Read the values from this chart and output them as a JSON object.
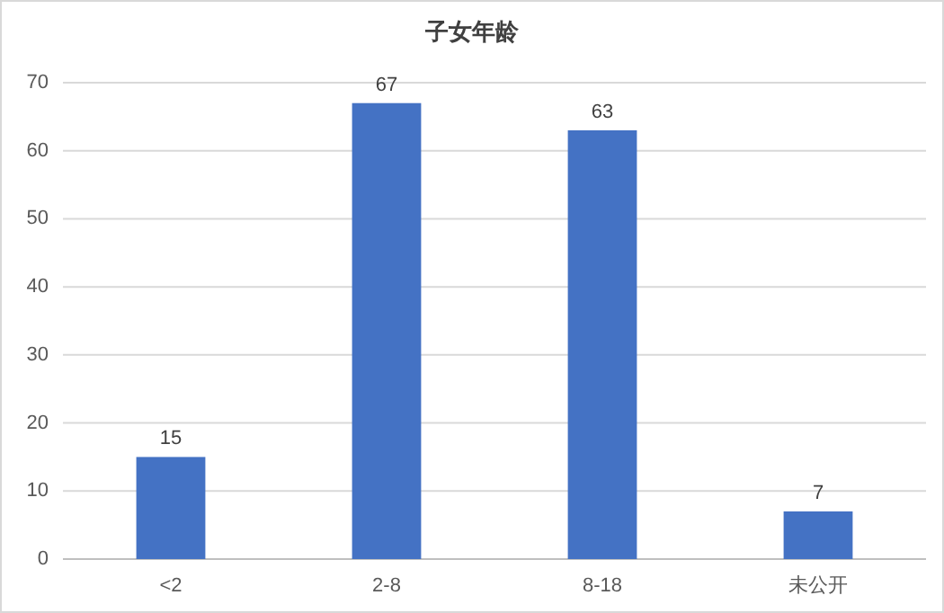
{
  "chart_data": {
    "type": "bar",
    "title": "子女年龄",
    "categories": [
      "<2",
      "2-8",
      "8-18",
      "未公开"
    ],
    "values": [
      15,
      67,
      63,
      7
    ],
    "color": "#4472c4",
    "ylim": [
      0,
      70
    ],
    "yticks": [
      0,
      10,
      20,
      30,
      40,
      50,
      60,
      70
    ],
    "grid": "y",
    "data_labels": true
  }
}
